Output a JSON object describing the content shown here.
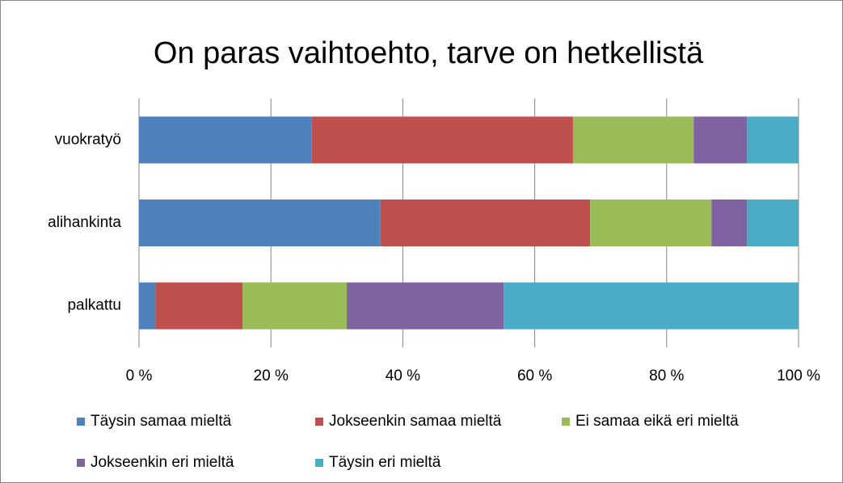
{
  "chart_data": {
    "type": "stacked_bar_horizontal",
    "title": "On paras vaihtoehto, tarve on hetkellistä",
    "categories": [
      "vuokratyö",
      "alihankinta",
      "palkattu"
    ],
    "series": [
      {
        "name": "Täysin samaa mieltä",
        "color": "#4f81bd",
        "values": [
          26.2,
          36.6,
          2.5
        ]
      },
      {
        "name": "Jokseenkin samaa mieltä",
        "color": "#c0504d",
        "values": [
          39.6,
          31.8,
          13.2
        ]
      },
      {
        "name": "Ei samaa eikä eri mieltä",
        "color": "#9bbb59",
        "values": [
          18.3,
          18.4,
          15.8
        ]
      },
      {
        "name": "Jokseenkin eri mieltä",
        "color": "#8064a2",
        "values": [
          8.1,
          5.4,
          23.8
        ]
      },
      {
        "name": "Täysin eri mieltä",
        "color": "#4bacc6",
        "values": [
          7.8,
          7.8,
          44.7
        ]
      }
    ],
    "xlim": [
      0,
      100
    ],
    "xticks": [
      {
        "value": 0,
        "label": "0 %"
      },
      {
        "value": 20,
        "label": "20 %"
      },
      {
        "value": 40,
        "label": "40 %"
      },
      {
        "value": 60,
        "label": "60 %"
      },
      {
        "value": 80,
        "label": "80 %"
      },
      {
        "value": 100,
        "label": "100 %"
      }
    ],
    "grid": true,
    "legend": "bottom"
  }
}
